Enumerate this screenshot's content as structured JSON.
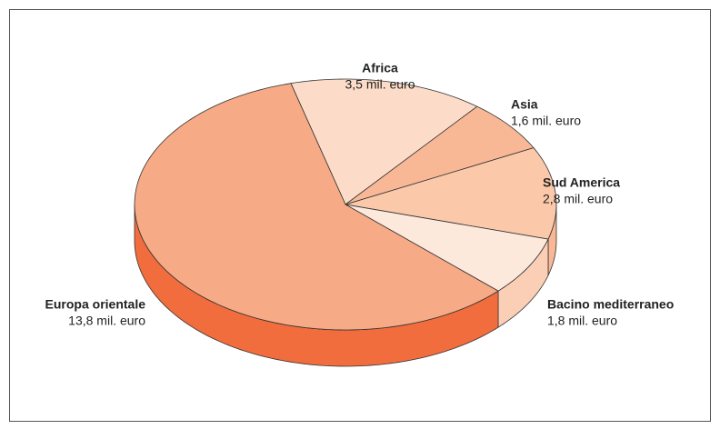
{
  "chart_data": {
    "type": "pie3d",
    "categories": [
      "Africa",
      "Asia",
      "Sud America",
      "Bacino mediterraneo",
      "Europa orientale"
    ],
    "values": [
      3.5,
      1.6,
      2.8,
      1.8,
      13.8
    ],
    "value_labels": [
      "3,5 mil. euro",
      "1,6 mil. euro",
      "2,8 mil. euro",
      "1,8 mil. euro",
      "13,8 mil. euro"
    ],
    "colors": [
      "#fcdcc8",
      "#f8b896",
      "#fbc9aa",
      "#fde8dc",
      "#f7aa86"
    ],
    "side_colors": [
      "#f9c4a6",
      "#f5a47c",
      "#f8b896",
      "#fbcfb5",
      "#f26d3d"
    ]
  }
}
